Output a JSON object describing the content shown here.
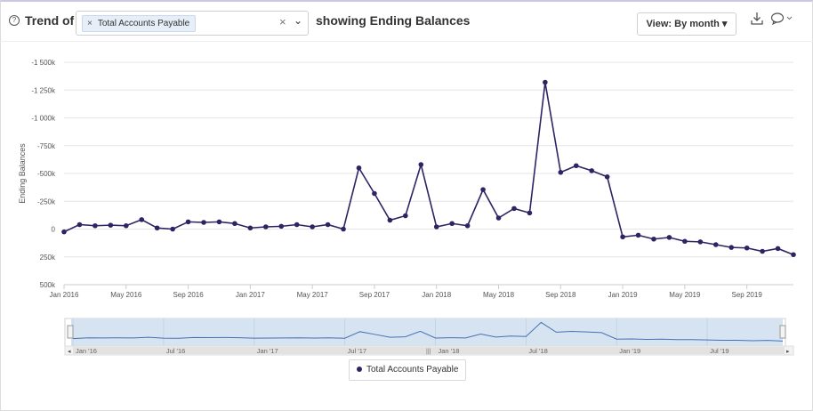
{
  "header": {
    "help_icon": "help-circle-icon",
    "trend_of_label": "Trend of",
    "filter_chip_label": "Total Accounts Payable",
    "showing_label": "showing Ending Balances",
    "view_button_label": "View: By month",
    "download_icon": "download-icon",
    "comment_icon": "comment-icon"
  },
  "legend": {
    "label": "Total Accounts Payable"
  },
  "colors": {
    "series": "#2d2463",
    "navigator_fill": "#d6e4f2",
    "navigator_line": "#4a6fb5"
  },
  "navigator": {
    "labels": [
      "Jan '16",
      "Jul '16",
      "Jan '17",
      "Jul '17",
      "Jan '18",
      "Jul '18",
      "Jan '19",
      "Jul '19"
    ]
  },
  "chart_data": {
    "type": "line",
    "title": "",
    "xlabel": "",
    "ylabel": "Ending Balances",
    "ylim": [
      -1500,
      500
    ],
    "y_inverted": true,
    "yticks": [
      -1500,
      -1250,
      -1000,
      -750,
      -500,
      -250,
      0,
      250,
      500
    ],
    "ytick_labels": [
      "-1 500k",
      "-1 250k",
      "-1 000k",
      "-750k",
      "-500k",
      "-250k",
      "0",
      "250k",
      "500k"
    ],
    "xtick_labels": [
      "Jan 2016",
      "May 2016",
      "Sep 2016",
      "Jan 2017",
      "May 2017",
      "Sep 2017",
      "Jan 2018",
      "May 2018",
      "Sep 2018",
      "Jan 2019",
      "May 2019",
      "Sep 2019"
    ],
    "grid": true,
    "legend_position": "bottom-center",
    "series": [
      {
        "name": "Total Accounts Payable",
        "x": [
          "Jan 2016",
          "Feb 2016",
          "Mar 2016",
          "Apr 2016",
          "May 2016",
          "Jun 2016",
          "Jul 2016",
          "Aug 2016",
          "Sep 2016",
          "Oct 2016",
          "Nov 2016",
          "Dec 2016",
          "Jan 2017",
          "Feb 2017",
          "Mar 2017",
          "Apr 2017",
          "May 2017",
          "Jun 2017",
          "Jul 2017",
          "Aug 2017",
          "Sep 2017",
          "Oct 2017",
          "Nov 2017",
          "Dec 2017",
          "Jan 2018",
          "Feb 2018",
          "Mar 2018",
          "Apr 2018",
          "May 2018",
          "Jun 2018",
          "Jul 2018",
          "Aug 2018",
          "Sep 2018",
          "Oct 2018",
          "Nov 2018",
          "Dec 2018",
          "Jan 2019",
          "Feb 2019",
          "Mar 2019",
          "Apr 2019",
          "May 2019",
          "Jun 2019",
          "Jul 2019",
          "Aug 2019",
          "Sep 2019",
          "Oct 2019",
          "Nov 2019",
          "Dec 2019"
        ],
        "values": [
          25,
          -40,
          -30,
          -35,
          -30,
          -85,
          -10,
          0,
          -65,
          -60,
          -65,
          -50,
          -10,
          -20,
          -25,
          -40,
          -20,
          -40,
          0,
          -550,
          -320,
          -80,
          -120,
          -580,
          -20,
          -50,
          -30,
          -355,
          -100,
          -185,
          -145,
          -1320,
          -510,
          -570,
          -525,
          -470,
          70,
          55,
          90,
          75,
          110,
          115,
          140,
          165,
          170,
          200,
          175,
          230
        ]
      }
    ]
  }
}
